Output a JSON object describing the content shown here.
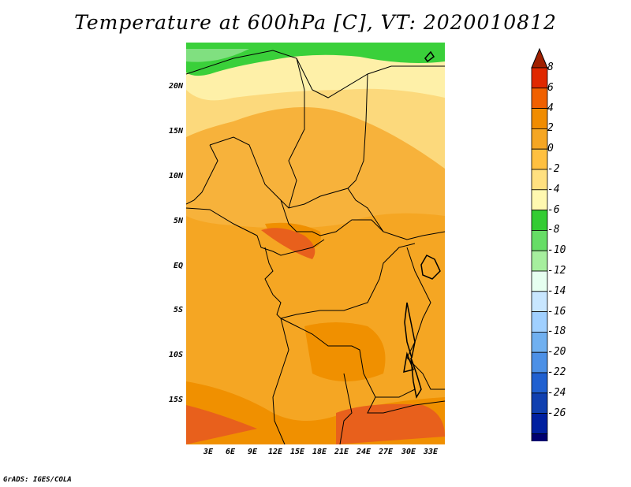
{
  "title": "Temperature at 600hPa [C], VT: 2020010812",
  "footer": "GrADS: IGES/COLA",
  "lat_labels": [
    {
      "id": "20n",
      "text": "20N"
    },
    {
      "id": "15n",
      "text": "15N"
    },
    {
      "id": "10n",
      "text": "10N"
    },
    {
      "id": "5n",
      "text": "5N"
    },
    {
      "id": "eq",
      "text": "EQ"
    },
    {
      "id": "5s",
      "text": "5S"
    },
    {
      "id": "10s",
      "text": "10S"
    },
    {
      "id": "15s",
      "text": "15S"
    }
  ],
  "lon_labels": [
    "3E",
    "6E",
    "9E",
    "12E",
    "15E",
    "18E",
    "21E",
    "24E",
    "27E",
    "30E",
    "33E"
  ],
  "colorbar": {
    "labels": [
      "8",
      "6",
      "4",
      "2",
      "0",
      "-2",
      "-4",
      "-6",
      "-8",
      "-10",
      "-12",
      "-14",
      "-16",
      "-18",
      "-20",
      "-22",
      "-24",
      "-26"
    ],
    "colors": [
      "#a02000",
      "#e02800",
      "#f06000",
      "#f08c00",
      "#f5a623",
      "#ffc040",
      "#ffe080",
      "#fff8b0",
      "#33cc33",
      "#66dd66",
      "#a6ef9e",
      "#e6fff0",
      "#c8e6ff",
      "#a0d0ff",
      "#70b0f0",
      "#4c90e6",
      "#2060d0",
      "#1040b0",
      "#0020a0",
      "#000070",
      "#d8d8ff"
    ]
  },
  "legend_colors": {
    "warm_dark": "#e8601c",
    "warm": "#f5a623",
    "warm_light": "#f7b23b",
    "pale": "#fcd97c",
    "paler": "#fef0a8",
    "green": "#3ad03a",
    "light_green": "#80e080"
  }
}
